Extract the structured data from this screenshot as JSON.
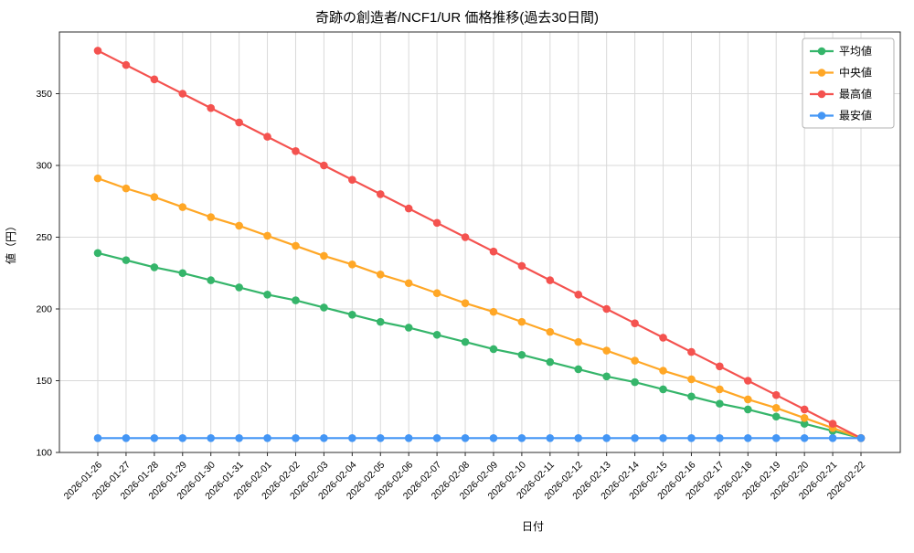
{
  "chart_data": {
    "type": "line",
    "title": "奇跡の創造者/NCF1/UR 価格推移(過去30日間)",
    "xlabel": "日付",
    "ylabel": "値（円）",
    "ylim": [
      100,
      393
    ],
    "yticks": [
      100,
      150,
      200,
      250,
      300,
      350
    ],
    "grid": true,
    "legend_position": "top-right",
    "categories": [
      "2026-01-26",
      "2026-01-27",
      "2026-01-28",
      "2026-01-29",
      "2026-01-30",
      "2026-01-31",
      "2026-02-01",
      "2026-02-02",
      "2026-02-03",
      "2026-02-04",
      "2026-02-05",
      "2026-02-06",
      "2026-02-07",
      "2026-02-08",
      "2026-02-09",
      "2026-02-10",
      "2026-02-11",
      "2026-02-12",
      "2026-02-13",
      "2026-02-14",
      "2026-02-15",
      "2026-02-16",
      "2026-02-17",
      "2026-02-18",
      "2026-02-19",
      "2026-02-20",
      "2026-02-21",
      "2026-02-22"
    ],
    "series": [
      {
        "key": "average",
        "name": "平均値",
        "color": "#35b56a",
        "values": [
          239,
          234,
          229,
          225,
          220,
          215,
          210,
          206,
          201,
          196,
          191,
          187,
          182,
          177,
          172,
          168,
          163,
          158,
          153,
          149,
          144,
          139,
          134,
          130,
          125,
          120,
          115,
          110
        ]
      },
      {
        "key": "median",
        "name": "中央値",
        "color": "#ffa726",
        "values": [
          291,
          284,
          278,
          271,
          264,
          258,
          251,
          244,
          237,
          231,
          224,
          218,
          211,
          204,
          198,
          191,
          184,
          177,
          171,
          164,
          157,
          151,
          144,
          137,
          131,
          124,
          117,
          110
        ]
      },
      {
        "key": "maximum",
        "name": "最高値",
        "color": "#f4524f",
        "values": [
          380,
          370,
          360,
          350,
          340,
          330,
          320,
          310,
          300,
          290,
          280,
          270,
          260,
          250,
          240,
          230,
          220,
          210,
          200,
          190,
          180,
          170,
          160,
          150,
          140,
          130,
          120,
          110
        ]
      },
      {
        "key": "minimum",
        "name": "最安値",
        "color": "#4496f5",
        "values": [
          110,
          110,
          110,
          110,
          110,
          110,
          110,
          110,
          110,
          110,
          110,
          110,
          110,
          110,
          110,
          110,
          110,
          110,
          110,
          110,
          110,
          110,
          110,
          110,
          110,
          110,
          110,
          110
        ]
      }
    ]
  }
}
